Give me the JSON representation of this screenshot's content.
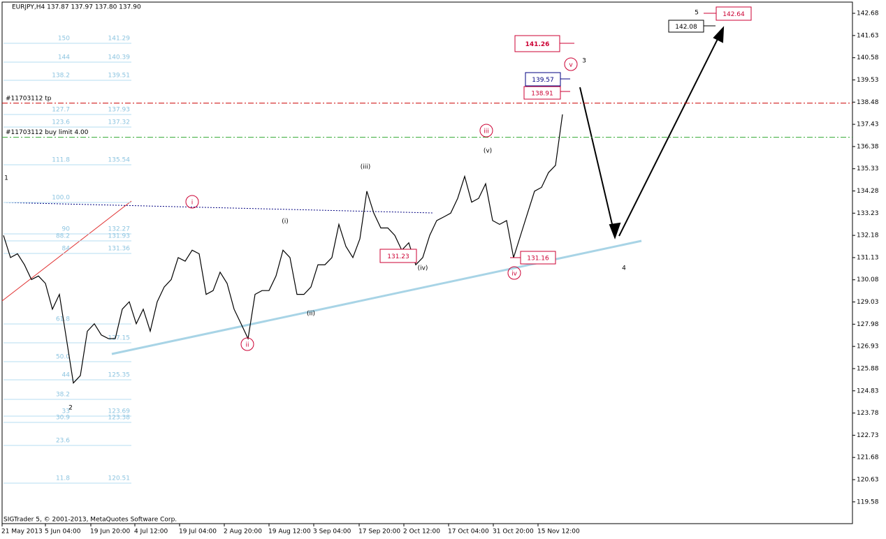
{
  "chart_data": {
    "type": "line",
    "title": "EURJPY,H4 137.87 137.97 137.80 137.90",
    "footer": "SIGTrader 5, © 2001-2013, MetaQuotes Software Corp.",
    "color": "#000000",
    "values": [
      132.18,
      131.13,
      131.31,
      130.79,
      130.09,
      130.26,
      129.91,
      128.69,
      129.39,
      127.3,
      125.2,
      125.55,
      127.65,
      128.0,
      127.47,
      127.3,
      127.3,
      128.69,
      129.04,
      128.0,
      128.69,
      127.65,
      129.04,
      129.74,
      130.09,
      131.13,
      130.96,
      131.48,
      131.31,
      129.39,
      129.57,
      130.44,
      129.91,
      128.69,
      128.0,
      127.3,
      129.39,
      129.57,
      129.57,
      130.26,
      131.48,
      131.13,
      129.39,
      129.39,
      129.74,
      130.79,
      130.79,
      131.13,
      132.7,
      131.66,
      131.13,
      132.01,
      134.27,
      133.23,
      132.53,
      132.53,
      132.18,
      131.48,
      131.83,
      130.79,
      131.13,
      132.18,
      132.88,
      133.05,
      133.23,
      133.93,
      134.97,
      133.75,
      133.93,
      134.62,
      132.88,
      132.7,
      132.88,
      131.13,
      132.18,
      133.23,
      134.27,
      134.45,
      135.15,
      135.49,
      137.9
    ],
    "xlim": [
      -0.2,
      121.5
    ],
    "xticks": [
      {
        "value": -0.2,
        "label": "21 May 2013"
      },
      {
        "value": 6,
        "label": "5 Jun 04:00"
      },
      {
        "value": 12.5,
        "label": "19 Jun 20:00"
      },
      {
        "value": 18.8,
        "label": "4 Jul 12:00"
      },
      {
        "value": 25.2,
        "label": "19 Jul 04:00"
      },
      {
        "value": 31.6,
        "label": "2 Aug 20:00"
      },
      {
        "value": 38,
        "label": "19 Aug 12:00"
      },
      {
        "value": 44.4,
        "label": "3 Sep 04:00"
      },
      {
        "value": 50.9,
        "label": "17 Sep 20:00"
      },
      {
        "value": 57.3,
        "label": "2 Oct 12:00"
      },
      {
        "value": 63.7,
        "label": "17 Oct 04:00"
      },
      {
        "value": 70.1,
        "label": "31 Oct 20:00"
      },
      {
        "value": 76.5,
        "label": "15 Nov 12:00"
      }
    ],
    "ylim": [
      118.55,
      143.21
    ],
    "yticks": [
      119.58,
      120.63,
      121.68,
      122.73,
      123.78,
      124.83,
      125.88,
      126.93,
      127.98,
      129.03,
      130.08,
      131.13,
      132.18,
      133.23,
      134.28,
      135.33,
      136.38,
      137.43,
      138.48,
      139.53,
      140.58,
      141.63,
      142.68
    ],
    "levels": [
      {
        "label": "#11703112 tp",
        "value": 138.43,
        "color": "#cc0000"
      },
      {
        "label": "#11703112 buy limit 4.00",
        "value": 136.82,
        "color": "#33aa33"
      }
    ],
    "wave_labels": {
      "primary": [
        "1",
        "2",
        "3",
        "4",
        "5"
      ],
      "minor": [
        "(i)",
        "(ii)",
        "(iii)",
        "(iv)",
        "(v)"
      ],
      "minute": [
        "i",
        "ii",
        "iii",
        "iv",
        "v"
      ]
    },
    "price_boxes": [
      "141.26",
      "139.57",
      "138.91",
      "142.08",
      "142.64",
      "131.23",
      "131.16"
    ],
    "fib_levels": [
      {
        "ratio": "150",
        "price": "141.29"
      },
      {
        "ratio": "144",
        "price": "140.39"
      },
      {
        "ratio": "138.2",
        "price": "139.51"
      },
      {
        "ratio": "127.7",
        "price": "137.93"
      },
      {
        "ratio": "123.6",
        "price": "137.32"
      },
      {
        "ratio": "111.8",
        "price": "135.54"
      },
      {
        "ratio": "100.0"
      },
      {
        "ratio": "90",
        "price": "132.27"
      },
      {
        "ratio": "88.2",
        "price": "131.93"
      },
      {
        "ratio": "84",
        "price": "131.36"
      },
      {
        "ratio": "61.8"
      },
      {
        "price": "127.15"
      },
      {
        "ratio": "50.0"
      },
      {
        "ratio": "44",
        "price": "125.35"
      },
      {
        "ratio": "38.2"
      },
      {
        "ratio": "33",
        "price": "123.69"
      },
      {
        "ratio": "30.9",
        "price": "123.38"
      },
      {
        "ratio": "23.6"
      },
      {
        "ratio": "11.8",
        "price": "120.51"
      }
    ]
  }
}
